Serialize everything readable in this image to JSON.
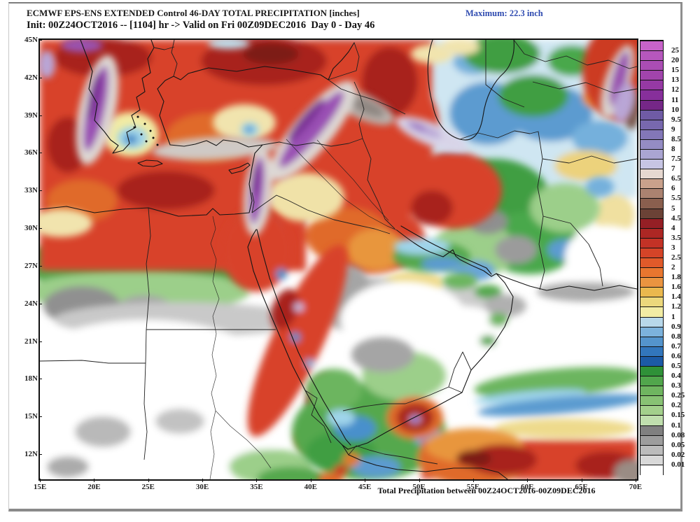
{
  "header": {
    "title": "ECMWF EPS-ENS EXTENDED Control 46-DAY TOTAL PRECIPITATION [inches]",
    "subtitle": "Init: 00Z24OCT2016 -- [1104] hr -> Valid on Fri 00Z09DEC2016  Day 0 - Day 46",
    "maximum_label": "Maximum: 22.3 inch",
    "maximum_color": "#2f4bb0"
  },
  "footer": {
    "caption": "Total Precipitation between 00Z24OCT2016-00Z09DEC2016"
  },
  "map": {
    "lat_labels": [
      "45N",
      "42N",
      "39N",
      "36N",
      "33N",
      "30N",
      "27N",
      "24N",
      "21N",
      "18N",
      "15N",
      "12N"
    ],
    "lon_labels": [
      "15E",
      "20E",
      "25E",
      "30E",
      "35E",
      "40E",
      "45E",
      "50E",
      "55E",
      "60E",
      "65E",
      "70E"
    ]
  },
  "colorbar": {
    "units": "inches",
    "levels": [
      "25",
      "20",
      "15",
      "13",
      "12",
      "11",
      "10",
      "9.5",
      "9",
      "8.5",
      "8",
      "7.5",
      "7",
      "6.5",
      "6",
      "5.5",
      "5",
      "4.5",
      "4",
      "3.5",
      "3",
      "2.5",
      "2",
      "1.8",
      "1.6",
      "1.4",
      "1.2",
      "1",
      "0.9",
      "0.8",
      "0.7",
      "0.6",
      "0.5",
      "0.4",
      "0.3",
      "0.25",
      "0.2",
      "0.15",
      "0.1",
      "0.08",
      "0.05",
      "0.02",
      "0.01"
    ],
    "colors_top_to_bottom": [
      "#c763c9",
      "#b657bd",
      "#ab4db4",
      "#a144ac",
      "#9639a4",
      "#872f9b",
      "#752787",
      "#6f5ba5",
      "#7868ae",
      "#8377b8",
      "#948cc4",
      "#aaa5d2",
      "#c7c5e4",
      "#e6d8d0",
      "#c9a18c",
      "#ab8270",
      "#8a5f4e",
      "#6b4236",
      "#951f25",
      "#ad2724",
      "#c33226",
      "#d54428",
      "#e05a2a",
      "#e8762f",
      "#ea9440",
      "#eab84e",
      "#ecd87c",
      "#f2eca4",
      "#b8d8ea",
      "#7cb2dc",
      "#5494cc",
      "#3276bc",
      "#1c5aa6",
      "#2f9138",
      "#51a64c",
      "#6fb560",
      "#88c274",
      "#a3d08c",
      "#c0dfae",
      "#808080",
      "#9d9d9d",
      "#bcbcbc",
      "#d9d9d9",
      "#ffffff"
    ]
  }
}
